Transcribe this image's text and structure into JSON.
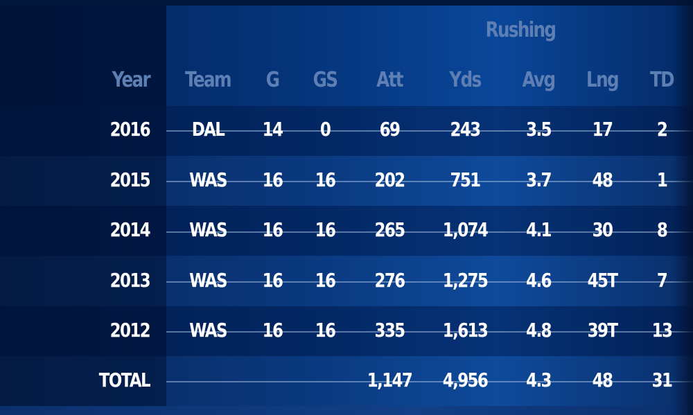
{
  "group_header": "Rushing",
  "columns": [
    "Year",
    "Team",
    "G",
    "GS",
    "Att",
    "Yds",
    "Avg",
    "Lng",
    "TD"
  ],
  "rows": [
    [
      "2016",
      "DAL",
      "14",
      "0",
      "69",
      "243",
      "3.5",
      "17",
      "2"
    ],
    [
      "2015",
      "WAS",
      "16",
      "16",
      "202",
      "751",
      "3.7",
      "48",
      "1"
    ],
    [
      "2014",
      "WAS",
      "16",
      "16",
      "265",
      "1,074",
      "4.1",
      "30",
      "8"
    ],
    [
      "2013",
      "WAS",
      "16",
      "16",
      "276",
      "1,275",
      "4.6",
      "45T",
      "7"
    ],
    [
      "2012",
      "WAS",
      "16",
      "16",
      "335",
      "1,613",
      "4.8",
      "39T",
      "13"
    ]
  ],
  "totals": [
    "TOTAL",
    "",
    "",
    "",
    "1,147",
    "4,956",
    "4.3",
    "48",
    "31"
  ],
  "colors": {
    "background": "#05357c",
    "header_text": "#5d7fb3",
    "value_text": "#ffffff",
    "rule": "#a0b9dc"
  }
}
